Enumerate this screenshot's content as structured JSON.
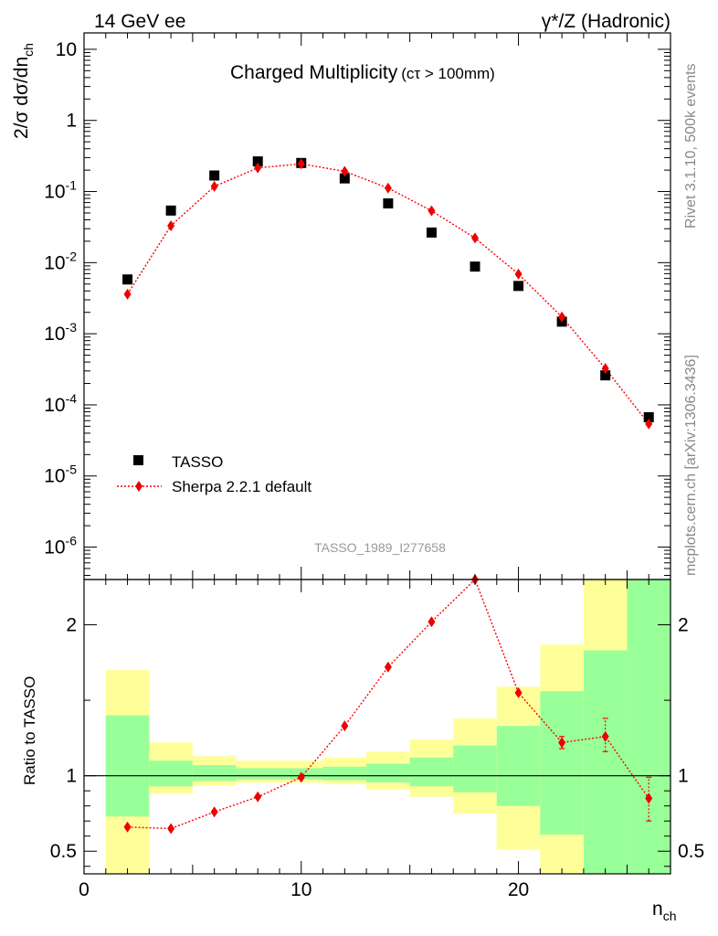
{
  "header": {
    "left": "14 GeV ee",
    "right": "γ*/Z (Hadronic)"
  },
  "title": {
    "main": "Charged Multiplicity",
    "sub": "(cτ > 100mm)"
  },
  "side_labels": {
    "rivet": "Rivet 3.1.10,  500k events",
    "mcplots": "mcplots.cern.ch [arXiv:1306.3436]"
  },
  "watermark": "TASSO_1989_I277658",
  "legend": {
    "data_label": "TASSO",
    "mc_label": "Sherpa 2.2.1 default"
  },
  "axes": {
    "y_main_label": "2/σ dσ/dn",
    "y_main_label_sub": "ch",
    "y_ratio_label": "Ratio to TASSO",
    "x_label": "n",
    "x_label_sub": "ch"
  },
  "colors": {
    "mc": "#ff0000",
    "mc_marker": "#ee0000",
    "data": "#000000",
    "band_inner": "#99ff99",
    "band_outer": "#ffff99"
  },
  "chart_data": [
    {
      "type": "scatter",
      "panel": "main",
      "log_y": true,
      "xlim": [
        0,
        27
      ],
      "ylim": [
        3.5e-07,
        17
      ],
      "y_ticks": [
        {
          "base": "10",
          "exp": "-6",
          "value": 1e-06
        },
        {
          "base": "10",
          "exp": "-5",
          "value": 1e-05
        },
        {
          "base": "10",
          "exp": "-4",
          "value": 0.0001
        },
        {
          "base": "10",
          "exp": "-3",
          "value": 0.001
        },
        {
          "base": "10",
          "exp": "-2",
          "value": 0.01
        },
        {
          "base": "10",
          "exp": "-1",
          "value": 0.1
        },
        {
          "base": "1",
          "exp": "",
          "value": 1
        },
        {
          "base": "10",
          "exp": "",
          "value": 10
        }
      ],
      "series": [
        {
          "name": "TASSO",
          "x": [
            2,
            4,
            6,
            8,
            10,
            12,
            14,
            16,
            18,
            20,
            22,
            24,
            26
          ],
          "y": [
            0.0058,
            0.054,
            0.168,
            0.265,
            0.252,
            0.153,
            0.068,
            0.0265,
            0.0088,
            0.0047,
            0.00148,
            0.00026,
            6.7e-05
          ]
        },
        {
          "name": "Sherpa 2.2.1 default",
          "x": [
            2,
            4,
            6,
            8,
            10,
            12,
            14,
            16,
            18,
            20,
            22,
            24,
            26
          ],
          "y": [
            0.0036,
            0.033,
            0.118,
            0.215,
            0.245,
            0.192,
            0.112,
            0.0535,
            0.0222,
            0.0069,
            0.00172,
            0.000325,
            5.4e-05
          ]
        }
      ]
    },
    {
      "type": "line",
      "panel": "ratio",
      "xlim": [
        0,
        27
      ],
      "ylim": [
        0.35,
        2.3
      ],
      "x_ticks": [
        "0",
        "10",
        "20"
      ],
      "x_tick_values": [
        0,
        10,
        20
      ],
      "y_ticks": [
        "0.5",
        "1",
        "2"
      ],
      "y_tick_values": [
        0.5,
        1,
        2
      ],
      "bands": [
        {
          "x0": 1,
          "x1": 3,
          "inner": [
            0.73,
            1.4
          ],
          "outer": [
            0.35,
            1.7
          ]
        },
        {
          "x0": 3,
          "x1": 5,
          "inner": [
            0.93,
            1.1
          ],
          "outer": [
            0.88,
            1.22
          ]
        },
        {
          "x0": 5,
          "x1": 7,
          "inner": [
            0.965,
            1.07
          ],
          "outer": [
            0.935,
            1.13
          ]
        },
        {
          "x0": 7,
          "x1": 9,
          "inner": [
            0.975,
            1.05
          ],
          "outer": [
            0.955,
            1.1
          ]
        },
        {
          "x0": 9,
          "x1": 11,
          "inner": [
            0.975,
            1.05
          ],
          "outer": [
            0.955,
            1.1
          ]
        },
        {
          "x0": 11,
          "x1": 13,
          "inner": [
            0.97,
            1.06
          ],
          "outer": [
            0.945,
            1.12
          ]
        },
        {
          "x0": 13,
          "x1": 15,
          "inner": [
            0.955,
            1.08
          ],
          "outer": [
            0.91,
            1.16
          ]
        },
        {
          "x0": 15,
          "x1": 17,
          "inner": [
            0.93,
            1.12
          ],
          "outer": [
            0.86,
            1.24
          ]
        },
        {
          "x0": 17,
          "x1": 19,
          "inner": [
            0.89,
            1.2
          ],
          "outer": [
            0.75,
            1.38
          ]
        },
        {
          "x0": 19,
          "x1": 21,
          "inner": [
            0.8,
            1.33
          ],
          "outer": [
            0.51,
            1.59
          ]
        },
        {
          "x0": 21,
          "x1": 23,
          "inner": [
            0.61,
            1.56
          ],
          "outer": [
            0.35,
            1.87
          ]
        },
        {
          "x0": 23,
          "x1": 25,
          "inner": [
            0.35,
            1.83
          ],
          "outer": [
            0.35,
            2.3
          ]
        },
        {
          "x0": 25,
          "x1": 27,
          "inner": [
            0.35,
            2.3
          ],
          "outer": [
            0.35,
            2.3
          ]
        }
      ],
      "series": [
        {
          "name": "Sherpa 2.2.1 default",
          "x": [
            2,
            4,
            6,
            8,
            10,
            12,
            14,
            16,
            18,
            20,
            22,
            24,
            26
          ],
          "y": [
            0.66,
            0.65,
            0.76,
            0.86,
            0.99,
            1.33,
            1.72,
            2.02,
            2.3,
            1.55,
            1.22,
            1.26,
            0.85
          ],
          "err_lo": [
            0,
            0,
            0,
            0,
            0,
            0,
            0,
            0,
            0,
            0,
            0.04,
            0.1,
            0.15
          ],
          "err_hi": [
            0,
            0,
            0,
            0,
            0,
            0,
            0,
            0,
            0,
            0,
            0.04,
            0.12,
            0.14
          ]
        }
      ]
    }
  ]
}
